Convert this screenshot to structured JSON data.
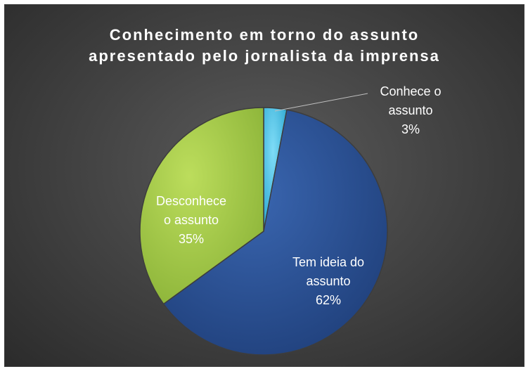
{
  "chart_data": {
    "type": "pie",
    "title_lines": [
      "Conhecimento em torno do assunto",
      "apresentado pelo jornalista da imprensa"
    ],
    "slices": [
      {
        "label_lines": [
          "Conhece o",
          "assunto"
        ],
        "value": 3,
        "value_label": "3%",
        "color": "#4bc4ec"
      },
      {
        "label_lines": [
          "Tem ideia do",
          "assunto"
        ],
        "value": 62,
        "value_label": "62%",
        "color": "#2f5597"
      },
      {
        "label_lines": [
          "Desconhece",
          "o assunto"
        ],
        "value": 35,
        "value_label": "35%",
        "color": "#a9cc49"
      }
    ],
    "legend": "none",
    "background": "#404040"
  }
}
